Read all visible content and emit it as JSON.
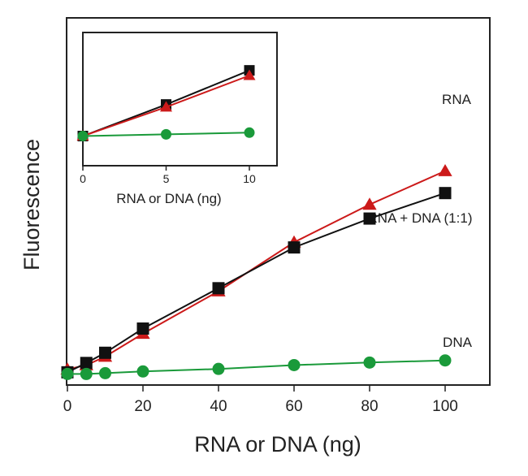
{
  "chart_data": [
    {
      "type": "line",
      "title": "",
      "xlabel": "RNA or DNA (ng)",
      "ylabel": "Fluorescence",
      "xlim": [
        0,
        100
      ],
      "ylim": [
        0,
        70
      ],
      "x_ticks": [
        0,
        20,
        40,
        60,
        80,
        100
      ],
      "x_tick_labels": [
        "0",
        "20",
        "40",
        "60",
        "80",
        "100"
      ],
      "y_ticks_shown": false,
      "grid": false,
      "legend": "none (series labels placed next to lines)",
      "series": [
        {
          "name": "RNA",
          "color": "#cc1a1a",
          "marker": "triangle",
          "x": [
            0,
            5,
            10,
            20,
            40,
            60,
            80,
            100
          ],
          "y": [
            1.4,
            2.4,
            4.4,
            9.8,
            19.8,
            31.3,
            40.2,
            48.1
          ]
        },
        {
          "name": "RNA + DNA (1:1)",
          "color": "#111111",
          "marker": "square",
          "x": [
            0,
            5,
            10,
            20,
            40,
            60,
            80,
            100
          ],
          "y": [
            0.7,
            2.9,
            5.3,
            11.0,
            20.5,
            30.1,
            36.9,
            42.9
          ]
        },
        {
          "name": "DNA",
          "color": "#1a9a3a",
          "marker": "circle",
          "x": [
            0,
            5,
            10,
            20,
            40,
            60,
            80,
            100
          ],
          "y": [
            0.3,
            0.3,
            0.5,
            0.9,
            1.5,
            2.4,
            3.0,
            3.5
          ]
        }
      ]
    },
    {
      "type": "line",
      "title": "",
      "xlabel": "RNA or DNA (ng)",
      "ylabel": "",
      "xlim": [
        0,
        10
      ],
      "ylim": [
        0,
        10
      ],
      "x_ticks": [
        0,
        5,
        10
      ],
      "x_tick_labels": [
        "0",
        "5",
        "10"
      ],
      "y_ticks_shown": false,
      "grid": false,
      "legend": "none",
      "series": [
        {
          "name": "",
          "color": "#111111",
          "marker": "square",
          "x": [
            0,
            5,
            10
          ],
          "y": [
            1.0,
            4.7,
            8.7
          ]
        },
        {
          "name": "",
          "color": "#cc1a1a",
          "marker": "triangle",
          "x": [
            0,
            5,
            10
          ],
          "y": [
            1.0,
            4.4,
            8.1
          ]
        },
        {
          "name": "",
          "color": "#1a9a3a",
          "marker": "circle",
          "x": [
            0,
            5,
            10
          ],
          "y": [
            1.0,
            1.2,
            1.4
          ]
        }
      ]
    }
  ]
}
